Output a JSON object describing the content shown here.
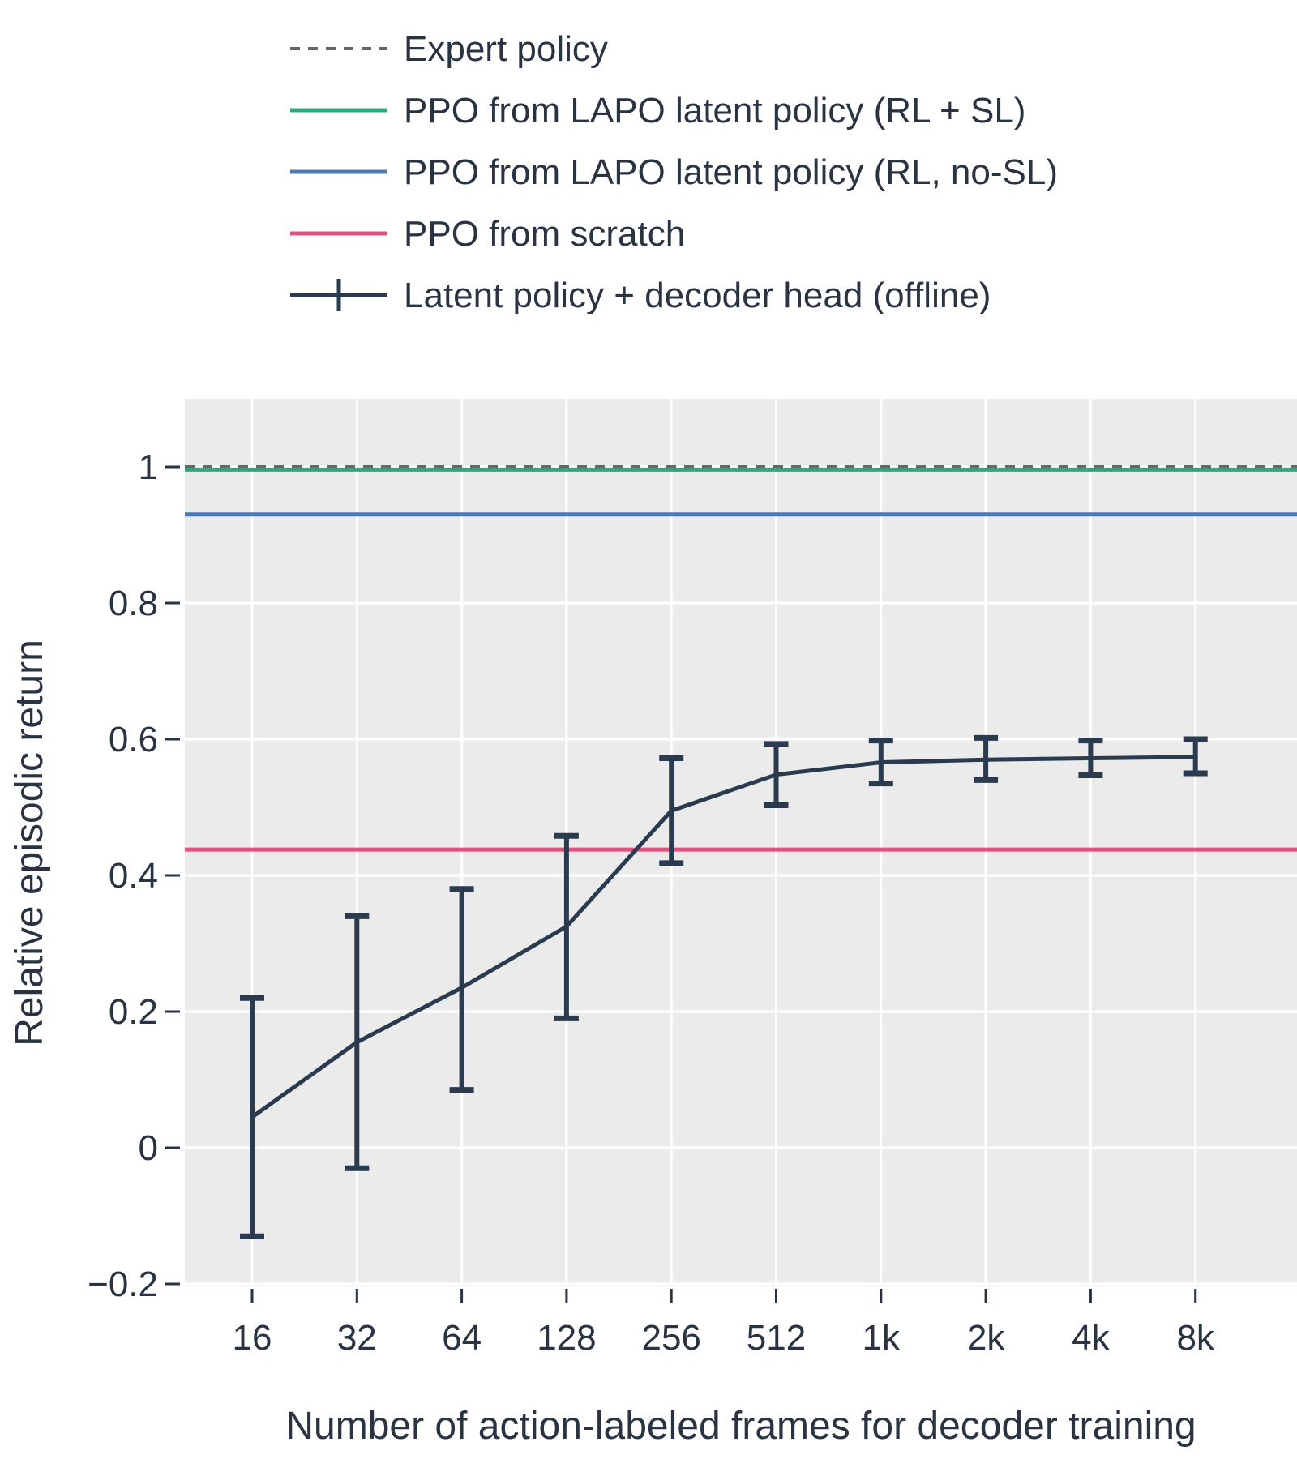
{
  "chart_data": {
    "type": "line",
    "xlabel": "Number of action-labeled frames for decoder training",
    "ylabel": "Relative episodic return",
    "categories": [
      "16",
      "32",
      "64",
      "128",
      "256",
      "512",
      "1k",
      "2k",
      "4k",
      "8k"
    ],
    "ylim": [
      -0.2,
      1.1
    ],
    "yticks": [
      -0.2,
      0,
      0.2,
      0.4,
      0.6,
      0.8,
      1
    ],
    "ytick_labels": [
      "−0.2",
      "0",
      "0.2",
      "0.4",
      "0.6",
      "0.8",
      "1"
    ],
    "grid": true,
    "background": "#ebebeb",
    "legend_position": "top",
    "reference_lines": [
      {
        "name": "Expert policy",
        "value": 1.0,
        "color": "#666666",
        "style": "dashed"
      },
      {
        "name": "PPO from LAPO latent policy (RL + SL)",
        "value": 0.996,
        "color": "#2ca87f",
        "style": "solid"
      },
      {
        "name": "PPO from LAPO latent policy (RL, no-SL)",
        "value": 0.93,
        "color": "#4c78b8",
        "style": "solid"
      },
      {
        "name": "PPO from scratch",
        "value": 0.438,
        "color": "#e0517f",
        "style": "solid"
      }
    ],
    "series": [
      {
        "name": "Latent policy + decoder head (offline)",
        "color": "#2a3a4f",
        "values": [
          0.045,
          0.155,
          0.235,
          0.325,
          0.495,
          0.548,
          0.566,
          0.57,
          0.572,
          0.574
        ],
        "error_low": [
          -0.13,
          -0.03,
          0.085,
          0.19,
          0.418,
          0.503,
          0.535,
          0.54,
          0.547,
          0.55
        ],
        "error_high": [
          0.22,
          0.34,
          0.38,
          0.458,
          0.572,
          0.593,
          0.598,
          0.602,
          0.598,
          0.6
        ]
      }
    ]
  }
}
